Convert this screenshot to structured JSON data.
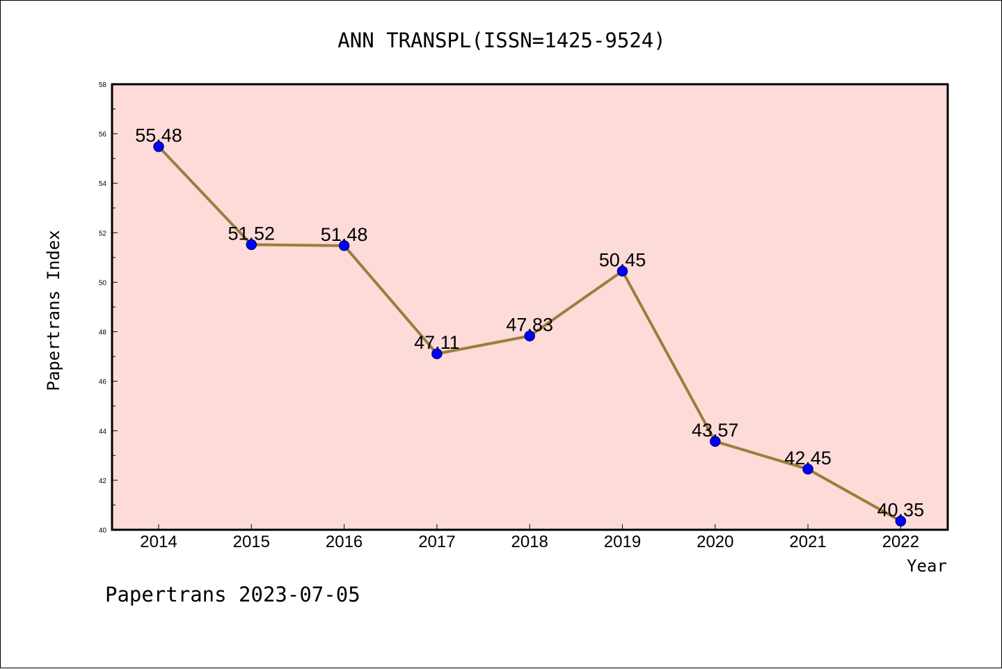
{
  "chart_data": {
    "type": "line",
    "title": "ANN TRANSPL(ISSN=1425-9524)",
    "xlabel": "Year",
    "ylabel": "Papertrans Index",
    "footer": "Papertrans 2023-07-05",
    "categories": [
      "2014",
      "2015",
      "2016",
      "2017",
      "2018",
      "2019",
      "2020",
      "2021",
      "2022"
    ],
    "series": [
      {
        "values": [
          55.48,
          51.52,
          51.48,
          47.11,
          47.83,
          50.45,
          43.57,
          42.45,
          40.35
        ],
        "labels": [
          "55.48",
          "51.52",
          "51.48",
          "47.11",
          "47.83",
          "50.45",
          "43.57",
          "42.45",
          "40.35"
        ]
      }
    ],
    "ylim": [
      40,
      58
    ],
    "yticks": [
      "40",
      "42",
      "44",
      "46",
      "48",
      "50",
      "52",
      "54",
      "56",
      "58"
    ],
    "ytick_step": 2,
    "grid": false,
    "legend": "none",
    "colors": {
      "plot_background": "#fddbd8",
      "line": "#9b7e3c",
      "marker": "#0000ff",
      "marker_edge": "#00008b"
    }
  }
}
